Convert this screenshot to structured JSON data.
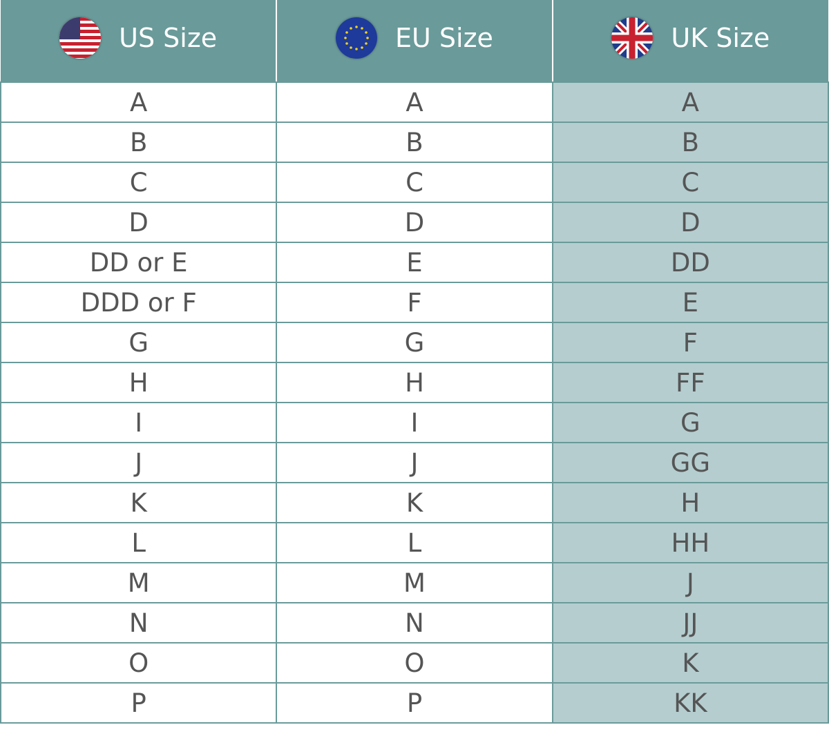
{
  "headers": [
    {
      "label": "US Size",
      "icon": "us-flag-icon"
    },
    {
      "label": "EU Size",
      "icon": "eu-flag-icon"
    },
    {
      "label": "UK Size",
      "icon": "uk-flag-icon"
    }
  ],
  "colors": {
    "header": "#6a9a9a",
    "uk_column": "#b5cdcf",
    "text": "#555555"
  },
  "rows": [
    [
      "A",
      "A",
      "A"
    ],
    [
      "B",
      "B",
      "B"
    ],
    [
      "C",
      "C",
      "C"
    ],
    [
      "D",
      "D",
      "D"
    ],
    [
      "DD or E",
      "E",
      "DD"
    ],
    [
      "DDD or F",
      "F",
      "E"
    ],
    [
      "G",
      "G",
      "F"
    ],
    [
      "H",
      "H",
      "FF"
    ],
    [
      "I",
      "I",
      "G"
    ],
    [
      "J",
      "J",
      "GG"
    ],
    [
      "K",
      "K",
      "H"
    ],
    [
      "L",
      "L",
      "HH"
    ],
    [
      "M",
      "M",
      "J"
    ],
    [
      "N",
      "N",
      "JJ"
    ],
    [
      "O",
      "O",
      "K"
    ],
    [
      "P",
      "P",
      "KK"
    ]
  ]
}
